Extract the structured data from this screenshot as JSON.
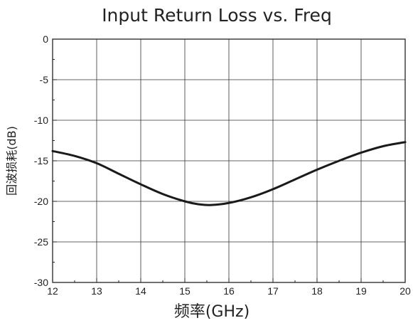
{
  "chart_data": {
    "type": "line",
    "title": "Input Return Loss vs. Freq",
    "xlabel": "频率(GHz)",
    "ylabel": "回波损耗(dB)",
    "xlim": [
      12,
      20
    ],
    "ylim": [
      -30,
      0
    ],
    "x_ticks": [
      "12",
      "13",
      "14",
      "15",
      "16",
      "17",
      "18",
      "19",
      "20"
    ],
    "y_ticks": [
      "0",
      "-5",
      "-10",
      "-15",
      "-20",
      "-25",
      "-30"
    ],
    "grid": true,
    "series": [
      {
        "color": "#1a1a1a",
        "x": [
          12,
          12.5,
          13,
          13.5,
          14,
          14.5,
          15,
          15.3,
          15.6,
          16,
          16.5,
          17,
          17.5,
          18,
          18.5,
          19,
          19.5,
          20
        ],
        "y": [
          -13.8,
          -14.4,
          -15.3,
          -16.6,
          -17.9,
          -19.1,
          -20.0,
          -20.35,
          -20.45,
          -20.2,
          -19.5,
          -18.5,
          -17.3,
          -16.1,
          -15.0,
          -14.0,
          -13.2,
          -12.7
        ]
      }
    ]
  }
}
